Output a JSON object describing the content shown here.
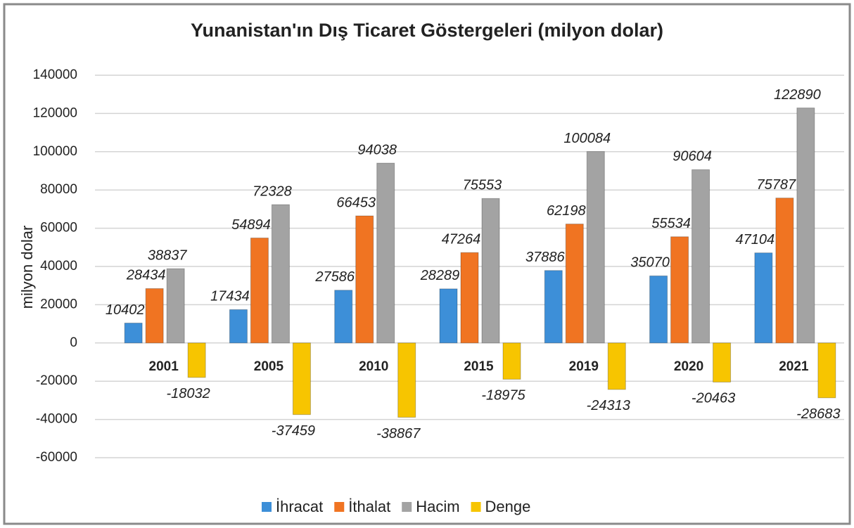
{
  "chart_data": {
    "type": "bar",
    "title": "Yunanistan'ın Dış Ticaret Göstergeleri  (milyon dolar)",
    "y_label": "milyon dolar",
    "categories": [
      "2001",
      "2005",
      "2010",
      "2015",
      "2019",
      "2020",
      "2021"
    ],
    "series": [
      {
        "name": "İhracat",
        "color": "#3d8fd8",
        "values": [
          10402,
          17434,
          27586,
          28289,
          37886,
          35070,
          47104
        ]
      },
      {
        "name": "İthalat",
        "color": "#f07422",
        "values": [
          28434,
          54894,
          66453,
          47264,
          62198,
          55534,
          75787
        ]
      },
      {
        "name": "Hacim",
        "color": "#a3a3a3",
        "values": [
          38837,
          72328,
          94038,
          75553,
          100084,
          90604,
          122890
        ]
      },
      {
        "name": "Denge",
        "color": "#f7c500",
        "values": [
          -18032,
          -37459,
          -38867,
          -18975,
          -24313,
          -20463,
          -28683
        ]
      }
    ],
    "ylim": [
      -60000,
      140000
    ],
    "yticks": [
      -60000,
      -40000,
      -20000,
      0,
      20000,
      40000,
      60000,
      80000,
      100000,
      120000,
      140000
    ],
    "grid": true,
    "legend": "bottom"
  }
}
